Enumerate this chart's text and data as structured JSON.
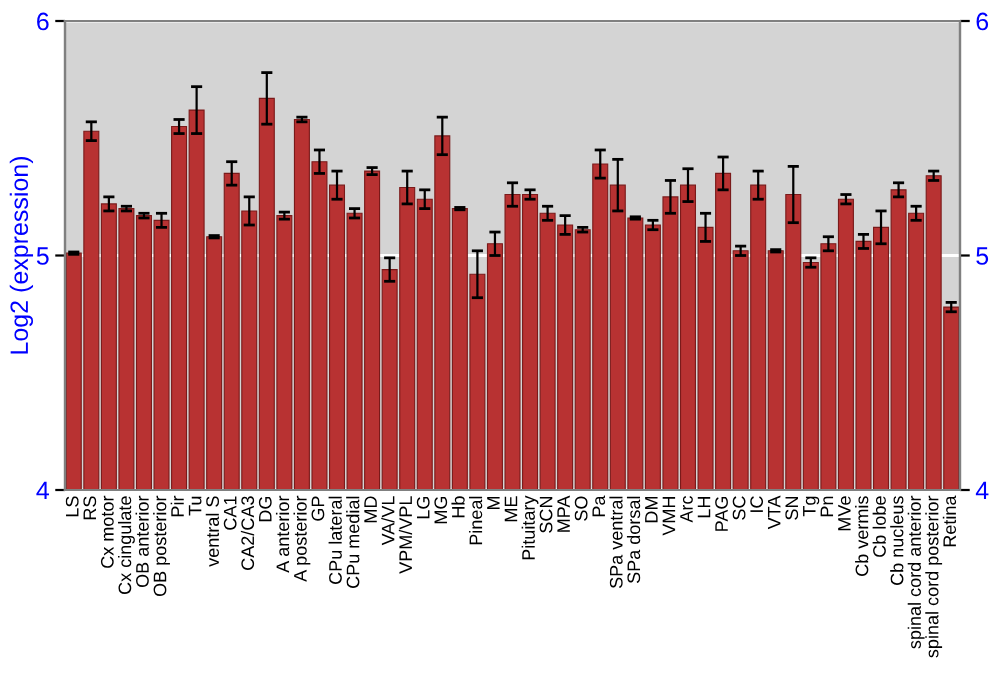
{
  "chart_data": {
    "type": "bar",
    "ylabel": "Log2 (expression)",
    "categories": [
      "LS",
      "RS",
      "Cx motor",
      "Cx cingulate",
      "OB anterior",
      "OB posterior",
      "Pir",
      "Tu",
      "ventral S",
      "CA1",
      "CA2/CA3",
      "DG",
      "A anterior",
      "A posterior",
      "GP",
      "CPu lateral",
      "CPu medial",
      "MD",
      "VA/VL",
      "VPM/VPL",
      "LG",
      "MG",
      "Hb",
      "Pineal",
      "M",
      "ME",
      "Pituitary",
      "SCN",
      "MPA",
      "SO",
      "Pa",
      "SPa ventral",
      "SPa dorsal",
      "DM",
      "VMH",
      "Arc",
      "LH",
      "PAG",
      "SC",
      "IC",
      "VTA",
      "SN",
      "Tg",
      "Pn",
      "MVe",
      "Cb vermis",
      "Cb lobe",
      "Cb nucleus",
      "spinal cord anterior",
      "spinal cord posterior",
      "Retina"
    ],
    "values": [
      5.01,
      5.53,
      5.22,
      5.2,
      5.17,
      5.15,
      5.55,
      5.62,
      5.08,
      5.35,
      5.19,
      5.67,
      5.17,
      5.58,
      5.4,
      5.3,
      5.18,
      5.36,
      4.94,
      5.29,
      5.24,
      5.51,
      5.2,
      4.92,
      5.05,
      5.26,
      5.26,
      5.18,
      5.13,
      5.11,
      5.39,
      5.3,
      5.16,
      5.13,
      5.25,
      5.3,
      5.12,
      5.35,
      5.02,
      5.3,
      5.02,
      5.26,
      4.97,
      5.05,
      5.24,
      5.06,
      5.12,
      5.28,
      5.18,
      5.34,
      4.78
    ],
    "errors": [
      0.005,
      0.04,
      0.03,
      0.01,
      0.01,
      0.03,
      0.03,
      0.1,
      0.005,
      0.05,
      0.06,
      0.11,
      0.015,
      0.01,
      0.05,
      0.06,
      0.02,
      0.015,
      0.05,
      0.07,
      0.04,
      0.08,
      0.005,
      0.1,
      0.05,
      0.05,
      0.02,
      0.03,
      0.04,
      0.01,
      0.06,
      0.11,
      0.005,
      0.02,
      0.07,
      0.07,
      0.06,
      0.07,
      0.02,
      0.06,
      0.005,
      0.12,
      0.02,
      0.03,
      0.02,
      0.03,
      0.07,
      0.03,
      0.03,
      0.02,
      0.02
    ],
    "color": "#b83232",
    "ylim": [
      4,
      6
    ],
    "yticks": [
      4,
      5,
      6
    ],
    "y2lim": [
      4,
      6
    ],
    "y2ticks": [
      4,
      5,
      6
    ],
    "grid": "y"
  }
}
